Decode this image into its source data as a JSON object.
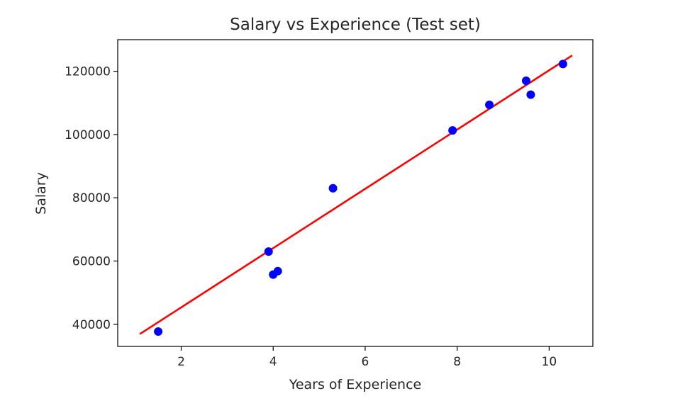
{
  "chart_data": {
    "type": "scatter",
    "title": "Salary vs Experience (Test set)",
    "xlabel": "Years of Experience",
    "ylabel": "Salary",
    "xlim": [
      0.62,
      10.95
    ],
    "ylim": [
      33000,
      130000
    ],
    "xticks": [
      2,
      4,
      6,
      8,
      10
    ],
    "yticks": [
      40000,
      60000,
      80000,
      100000,
      120000
    ],
    "grid": false,
    "series": [
      {
        "kind": "scatter",
        "color": "#0000ff",
        "points": [
          [
            1.5,
            37700
          ],
          [
            3.9,
            63000
          ],
          [
            4.0,
            55700
          ],
          [
            4.1,
            56800
          ],
          [
            5.3,
            83000
          ],
          [
            7.9,
            101300
          ],
          [
            8.7,
            109400
          ],
          [
            9.5,
            117000
          ],
          [
            9.6,
            112600
          ],
          [
            10.3,
            122300
          ]
        ]
      },
      {
        "kind": "line",
        "color": "#ff0000",
        "points": [
          [
            1.1,
            36900
          ],
          [
            10.5,
            125000
          ]
        ]
      }
    ]
  }
}
